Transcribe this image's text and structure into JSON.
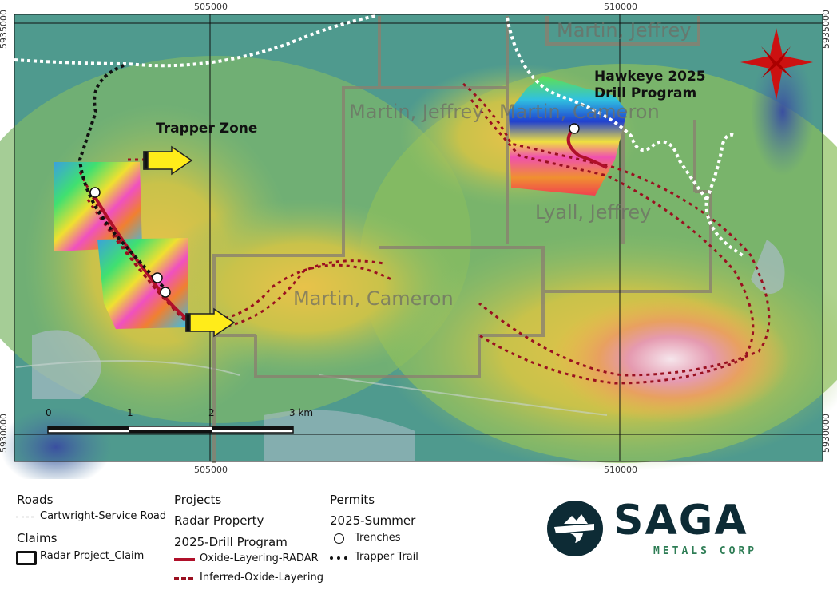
{
  "map": {
    "grid_labels": {
      "x": [
        "505000",
        "510000"
      ],
      "y": [
        "5935000",
        "5930000"
      ]
    },
    "claim_owners": [
      "Martin, Jeffrey",
      "Martin, Jeffrey",
      "Martin, Cameron",
      "Lyall, Jeffrey",
      "Martin, Cameron"
    ],
    "callouts": {
      "trapper": "Trapper Zone",
      "hawkeye_line1": "Hawkeye 2025",
      "hawkeye_line2": "Drill Program"
    },
    "scale_bar": {
      "ticks": [
        "0",
        "1",
        "2",
        "3 km"
      ]
    },
    "north_arrow": "compass-star-icon",
    "colors": {
      "oxide": "#b0102a",
      "inferred": "#9a1020",
      "north_star": "#cc1111",
      "claim": "#8a8170"
    }
  },
  "legend": {
    "roads": {
      "title": "Roads",
      "items": [
        "Cartwright-Service Road"
      ]
    },
    "claims": {
      "title": "Claims",
      "items": [
        "Radar Project_Claim"
      ]
    },
    "projects": {
      "title": "Projects",
      "subtitle1": "Radar Property",
      "subtitle2": "2025-Drill Program",
      "items": [
        "Oxide-Layering-RADAR",
        "Inferred-Oxide-Layering"
      ]
    },
    "permits": {
      "title": "Permits",
      "subtitle": "2025-Summer",
      "items": [
        "Trenches",
        "Trapper Trail"
      ]
    }
  },
  "logo": {
    "name": "SAGA",
    "tagline": "METALS CORP",
    "colors": {
      "dark": "#0d2b35",
      "green": "#2e7d55"
    }
  }
}
